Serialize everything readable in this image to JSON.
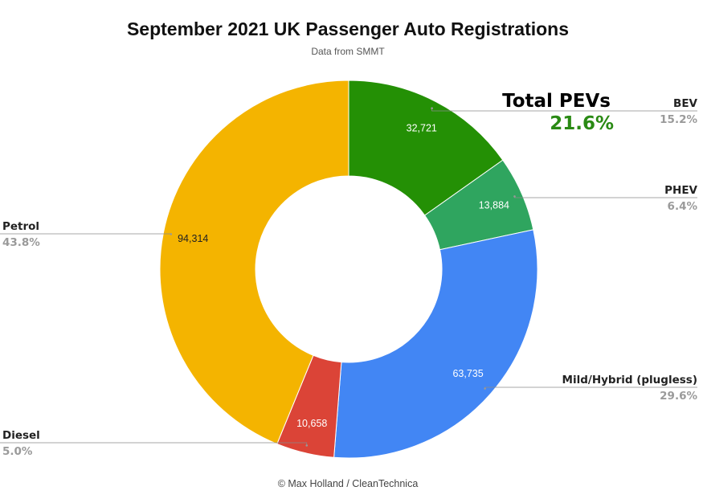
{
  "chart_data": {
    "type": "pie",
    "donut": true,
    "title": "September 2021 UK Passenger Auto Registrations",
    "subtitle": "Data from SMMT",
    "credit": "© Max Holland / CleanTechnica",
    "slices": [
      {
        "label": "BEV",
        "value": 32721,
        "value_label": "32,721",
        "percent_label": "15.2%",
        "color": "#249005"
      },
      {
        "label": "PHEV",
        "value": 13884,
        "value_label": "13,884",
        "percent_label": "6.4%",
        "color": "#2fa55f"
      },
      {
        "label": "Mild/Hybrid (plugless)",
        "value": 63735,
        "value_label": "63,735",
        "percent_label": "29.6%",
        "color": "#4286f4"
      },
      {
        "label": "Diesel",
        "value": 10658,
        "value_label": "10,658",
        "percent_label": "5.0%",
        "color": "#db4437"
      },
      {
        "label": "Petrol",
        "value": 94314,
        "value_label": "94,314",
        "percent_label": "43.8%",
        "color": "#f4b400"
      }
    ],
    "annotation": {
      "title": "Total PEVs",
      "value": "21.6%"
    }
  }
}
